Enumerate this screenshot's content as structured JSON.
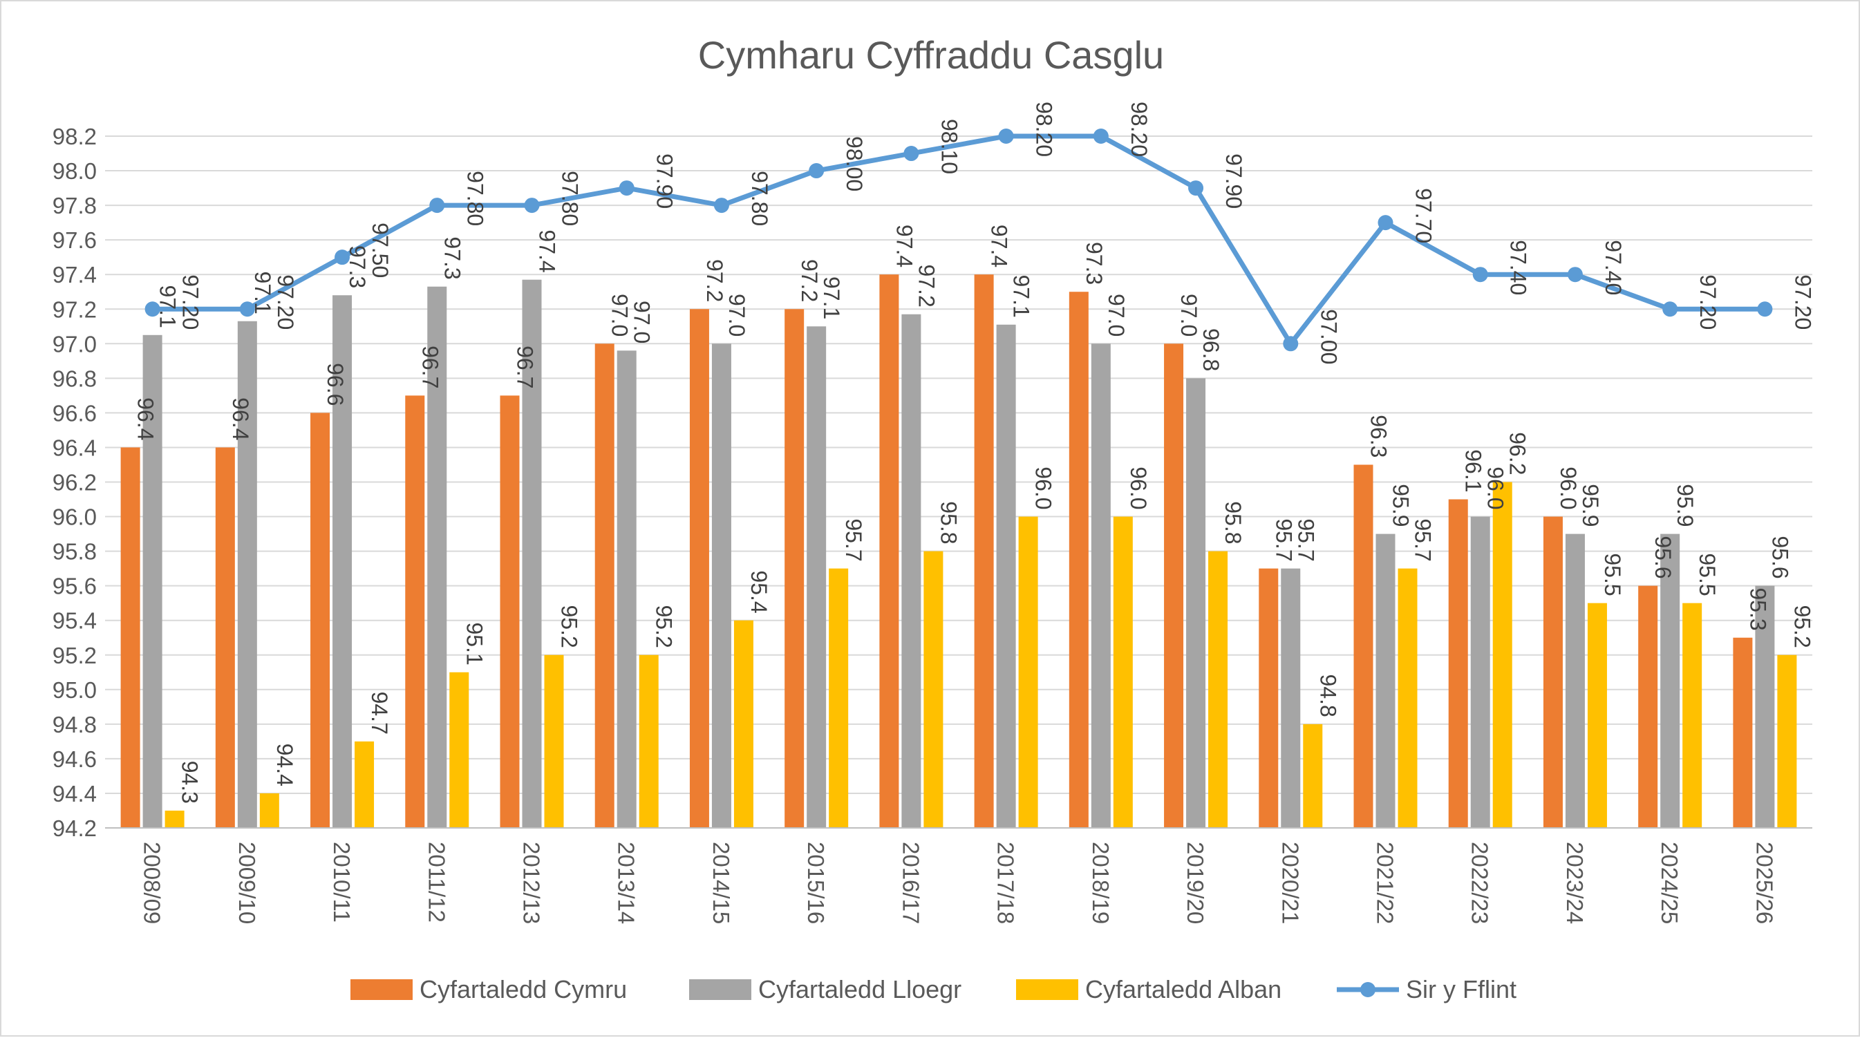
{
  "chart_data": {
    "type": "bar",
    "title": "Cymharu Cyffraddu Casglu",
    "categories": [
      "2008/09",
      "2009/10",
      "2010/11",
      "2011/12",
      "2012/13",
      "2013/14",
      "2014/15",
      "2015/16",
      "2016/17",
      "2017/18",
      "2018/19",
      "2019/20",
      "2020/21",
      "2021/22",
      "2022/23",
      "2023/24",
      "2024/25",
      "2025/26"
    ],
    "ylim": [
      94.2,
      98.2
    ],
    "ytick_step": 0.2,
    "y_tick_labels": [
      "94.2",
      "94.4",
      "94.6",
      "94.8",
      "95.0",
      "95.2",
      "95.4",
      "95.6",
      "95.8",
      "96.0",
      "96.2",
      "96.4",
      "96.6",
      "96.8",
      "97.0",
      "97.2",
      "97.4",
      "97.6",
      "97.8",
      "98.0",
      "98.2"
    ],
    "grid": true,
    "legend_position": "bottom",
    "series": [
      {
        "name": "Cyfartaledd Cymru",
        "kind": "bar",
        "color": "#ED7D31",
        "values": [
          96.4,
          96.4,
          96.6,
          96.7,
          96.7,
          97.0,
          97.2,
          97.2,
          97.4,
          97.4,
          97.3,
          97.0,
          95.7,
          96.3,
          96.1,
          96.0,
          95.6,
          95.3
        ],
        "labels": [
          "96.4",
          "96.4",
          "96.6",
          "96.7",
          "96.7",
          "97.0",
          "97.2",
          "97.2",
          "97.4",
          "97.4",
          "97.3",
          "97.0",
          "95.7",
          "96.3",
          "96.1",
          "96.0",
          "95.6",
          "95.3"
        ]
      },
      {
        "name": "Cyfartaledd Lloegr",
        "kind": "bar",
        "color": "#A5A5A5",
        "values": [
          97.05,
          97.13,
          97.28,
          97.33,
          97.37,
          96.96,
          97.0,
          97.1,
          97.17,
          97.11,
          97.0,
          96.8,
          95.7,
          95.9,
          96.0,
          95.9,
          95.9,
          95.6
        ],
        "labels": [
          "97.1",
          "97.1",
          "97.3",
          "97.3",
          "97.4",
          "97.0",
          "97.0",
          "97.1",
          "97.2",
          "97.1",
          "97.0",
          "96.8",
          "95.7",
          "95.9",
          "96.0",
          "95.9",
          "95.9",
          "95.6"
        ]
      },
      {
        "name": "Cyfartaledd Alban",
        "kind": "bar",
        "color": "#FFC000",
        "values": [
          94.3,
          94.4,
          94.7,
          95.1,
          95.2,
          95.2,
          95.4,
          95.7,
          95.8,
          96.0,
          96.0,
          95.8,
          94.8,
          95.7,
          96.2,
          95.5,
          95.5,
          95.2
        ],
        "labels": [
          "94.3",
          "94.4",
          "94.7",
          "95.1",
          "95.2",
          "95.2",
          "95.4",
          "95.7",
          "95.8",
          "96.0",
          "96.0",
          "95.8",
          "94.8",
          "95.7",
          "96.2",
          "95.5",
          "95.5",
          "95.2"
        ]
      },
      {
        "name": "Sir y Fflint",
        "kind": "line",
        "color": "#5B9BD5",
        "values": [
          97.2,
          97.2,
          97.5,
          97.8,
          97.8,
          97.9,
          97.8,
          98.0,
          98.1,
          98.2,
          98.2,
          97.9,
          97.0,
          97.7,
          97.4,
          97.4,
          97.2,
          97.2
        ],
        "labels": [
          "97.20",
          "97.20",
          "97.50",
          "97.80",
          "97.80",
          "97.90",
          "97.80",
          "98.00",
          "98.10",
          "98.20",
          "98.20",
          "97.90",
          "97.00",
          "97.70",
          "97.40",
          "97.40",
          "97.20",
          "97.20"
        ]
      }
    ]
  }
}
